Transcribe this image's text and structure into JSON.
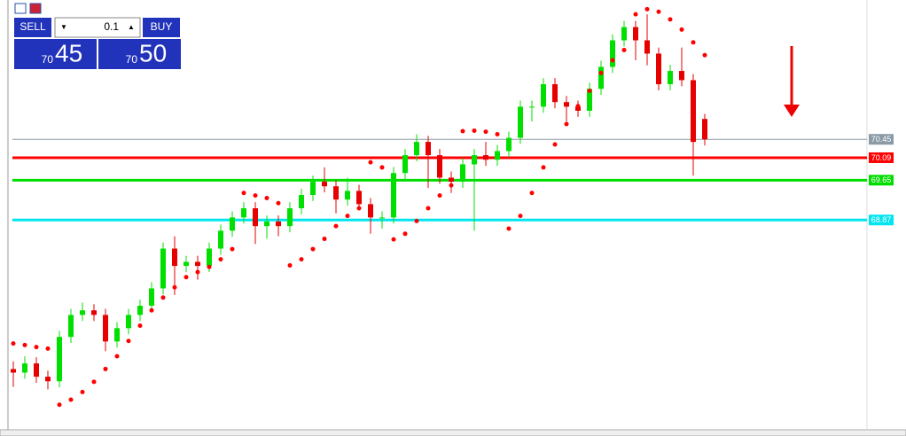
{
  "trade_panel": {
    "sell": "SELL",
    "buy": "BUY",
    "volume": "0.1",
    "sell_prefix": "70",
    "sell_main": "45",
    "buy_prefix": "70",
    "buy_main": "50"
  },
  "chart_data": {
    "type": "candlestick",
    "ylim": [
      65.02,
      73.18
    ],
    "up_color": "#00e000",
    "down_color": "#e60000",
    "sar_color": "#ff0000",
    "open": [
      65.95,
      65.88,
      66.06,
      65.8,
      65.71,
      66.58,
      67.01,
      67.1,
      67.01,
      66.49,
      66.75,
      67.01,
      67.19,
      67.53,
      68.31,
      67.97,
      68.05,
      67.97,
      68.31,
      68.66,
      68.92,
      69.1,
      68.75,
      68.84,
      68.75,
      69.1,
      69.36,
      69.62,
      69.53,
      69.27,
      69.44,
      69.18,
      68.92,
      68.92,
      69.79,
      70.14,
      70.4,
      70.14,
      69.7,
      69.62,
      69.96,
      70.14,
      70.05,
      70.22,
      70.48,
      71.09,
      71.09,
      71.53,
      71.18,
      71.09,
      71.01,
      71.44,
      71.87,
      72.39,
      72.65,
      72.39,
      72.13,
      71.53,
      71.79,
      71.61,
      70.85
    ],
    "high": [
      66.1,
      66.2,
      66.18,
      65.92,
      66.7,
      67.13,
      67.25,
      67.22,
      67.13,
      66.87,
      67.13,
      67.31,
      67.65,
      68.43,
      68.55,
      68.17,
      68.17,
      68.43,
      68.78,
      69.04,
      69.22,
      69.22,
      68.96,
      68.96,
      69.22,
      69.48,
      69.74,
      69.9,
      69.65,
      69.7,
      69.56,
      69.3,
      69.04,
      69.91,
      70.26,
      70.55,
      70.52,
      70.26,
      69.82,
      70.08,
      70.26,
      70.4,
      70.34,
      70.6,
      71.21,
      71.21,
      71.65,
      71.65,
      71.3,
      71.21,
      71.56,
      71.99,
      72.51,
      72.77,
      72.77,
      72.9,
      72.25,
      71.91,
      72.25,
      71.73,
      70.95
    ],
    "low": [
      65.6,
      65.76,
      65.68,
      65.55,
      65.59,
      66.46,
      66.89,
      66.89,
      66.3,
      66.37,
      66.63,
      66.89,
      67.07,
      67.41,
      67.4,
      67.85,
      67.7,
      67.85,
      68.19,
      68.54,
      68.8,
      68.4,
      68.5,
      68.55,
      68.63,
      68.98,
      69.24,
      69.41,
      69.0,
      69.15,
      69.06,
      68.6,
      68.7,
      68.8,
      69.67,
      70.02,
      69.5,
      69.58,
      69.4,
      69.5,
      68.66,
      69.93,
      69.93,
      70.1,
      70.36,
      70.8,
      70.97,
      71.06,
      70.8,
      70.89,
      70.89,
      71.32,
      71.75,
      72.27,
      72.0,
      71.9,
      71.41,
      71.41,
      71.49,
      69.74,
      70.33
    ],
    "close": [
      65.88,
      66.06,
      65.8,
      65.71,
      66.58,
      67.01,
      67.1,
      67.01,
      66.49,
      66.75,
      67.01,
      67.19,
      67.53,
      68.31,
      67.97,
      68.05,
      67.97,
      68.31,
      68.66,
      68.92,
      69.1,
      68.75,
      68.84,
      68.75,
      69.1,
      69.36,
      69.62,
      69.53,
      69.27,
      69.44,
      69.18,
      68.92,
      68.92,
      69.79,
      70.14,
      70.4,
      70.14,
      69.7,
      69.62,
      69.96,
      70.14,
      70.05,
      70.22,
      70.48,
      71.09,
      71.09,
      71.53,
      71.18,
      71.09,
      71.01,
      71.44,
      71.87,
      72.39,
      72.65,
      72.39,
      72.13,
      71.53,
      71.79,
      71.61,
      70.4,
      70.45
    ],
    "sar": [
      66.45,
      66.42,
      66.38,
      66.35,
      65.25,
      65.35,
      65.5,
      65.7,
      65.95,
      66.2,
      66.5,
      66.8,
      67.1,
      67.35,
      67.55,
      67.75,
      67.85,
      67.95,
      68.1,
      68.3,
      69.4,
      69.35,
      69.3,
      69.2,
      67.98,
      68.1,
      68.3,
      68.5,
      68.75,
      68.95,
      69.1,
      70.0,
      69.9,
      68.49,
      68.6,
      68.85,
      69.1,
      69.35,
      69.55,
      70.61,
      70.62,
      70.6,
      70.55,
      68.7,
      68.95,
      69.4,
      69.9,
      70.35,
      70.75,
      71.1,
      71.4,
      71.75,
      72.0,
      72.2,
      72.9,
      73.0,
      72.95,
      72.8,
      72.6,
      72.35,
      72.1
    ],
    "levels": [
      {
        "value": 70.45,
        "color": "#8a9aa6",
        "width": 1
      },
      {
        "value": 70.09,
        "color": "#ff0000",
        "width": 3
      },
      {
        "value": 69.65,
        "color": "#00dd00",
        "width": 3
      },
      {
        "value": 68.87,
        "color": "#00e5ee",
        "width": 3
      }
    ]
  }
}
